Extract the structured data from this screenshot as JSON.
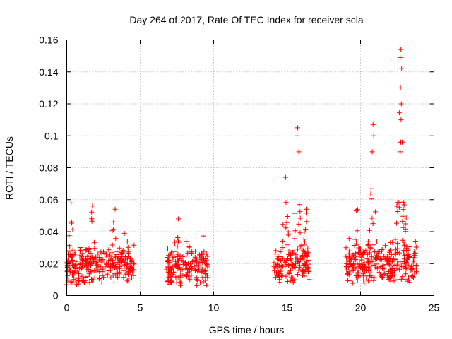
{
  "chart_data": {
    "type": "scatter",
    "title": "Day 264 of 2017, Rate Of TEC Index for receiver scla",
    "xlabel": "GPS time / hours",
    "ylabel": "ROTI / TECUs",
    "xlim": [
      0,
      25
    ],
    "ylim": [
      0,
      0.16
    ],
    "xticks": [
      0,
      5,
      10,
      15,
      20,
      25
    ],
    "yticks": [
      0,
      0.02,
      0.04,
      0.06,
      0.08,
      0.1,
      0.12,
      0.14,
      0.16
    ],
    "ytick_labels": [
      "0",
      "0.02",
      "0.04",
      "0.06",
      "0.08",
      "0.1",
      "0.12",
      "0.14",
      "0.16"
    ],
    "grid": true,
    "marker": "+",
    "series": [
      {
        "name": "ROTI",
        "color": "#ff0000",
        "segments": [
          {
            "start": 0.0,
            "end": 4.6,
            "base": 0.015,
            "spread": 0.012,
            "peaks": [
              [
                0.3,
                0.058
              ],
              [
                1.7,
                0.056
              ],
              [
                3.2,
                0.054
              ],
              [
                4.0,
                0.046
              ]
            ]
          },
          {
            "start": 6.8,
            "end": 9.6,
            "base": 0.014,
            "spread": 0.012,
            "peaks": [
              [
                7.5,
                0.048
              ],
              [
                8.2,
                0.042
              ],
              [
                9.3,
                0.039
              ]
            ]
          },
          {
            "start": 14.1,
            "end": 16.5,
            "base": 0.015,
            "spread": 0.012,
            "peaks": [
              [
                14.9,
                0.074
              ],
              [
                15.7,
                0.105
              ],
              [
                16.3,
                0.054
              ]
            ]
          },
          {
            "start": 19.0,
            "end": 23.8,
            "base": 0.016,
            "spread": 0.013,
            "peaks": [
              [
                19.8,
                0.055
              ],
              [
                20.8,
                0.107
              ],
              [
                22.7,
                0.154
              ],
              [
                23.0,
                0.065
              ]
            ]
          }
        ],
        "extremes": [
          {
            "x": 15.72,
            "y": 0.105
          },
          {
            "x": 15.68,
            "y": 0.1
          },
          {
            "x": 15.8,
            "y": 0.09
          },
          {
            "x": 20.85,
            "y": 0.107
          },
          {
            "x": 20.9,
            "y": 0.1
          },
          {
            "x": 20.8,
            "y": 0.09
          },
          {
            "x": 22.75,
            "y": 0.154
          },
          {
            "x": 22.7,
            "y": 0.149
          },
          {
            "x": 22.8,
            "y": 0.142
          },
          {
            "x": 22.72,
            "y": 0.13
          },
          {
            "x": 22.78,
            "y": 0.12
          },
          {
            "x": 22.76,
            "y": 0.11
          },
          {
            "x": 22.74,
            "y": 0.096
          },
          {
            "x": 22.7,
            "y": 0.09
          },
          {
            "x": 0.3,
            "y": 0.058
          },
          {
            "x": 1.75,
            "y": 0.056
          },
          {
            "x": 3.3,
            "y": 0.054
          },
          {
            "x": 7.6,
            "y": 0.048
          },
          {
            "x": 14.9,
            "y": 0.074
          },
          {
            "x": 16.3,
            "y": 0.054
          },
          {
            "x": 19.7,
            "y": 0.053
          }
        ]
      }
    ]
  }
}
